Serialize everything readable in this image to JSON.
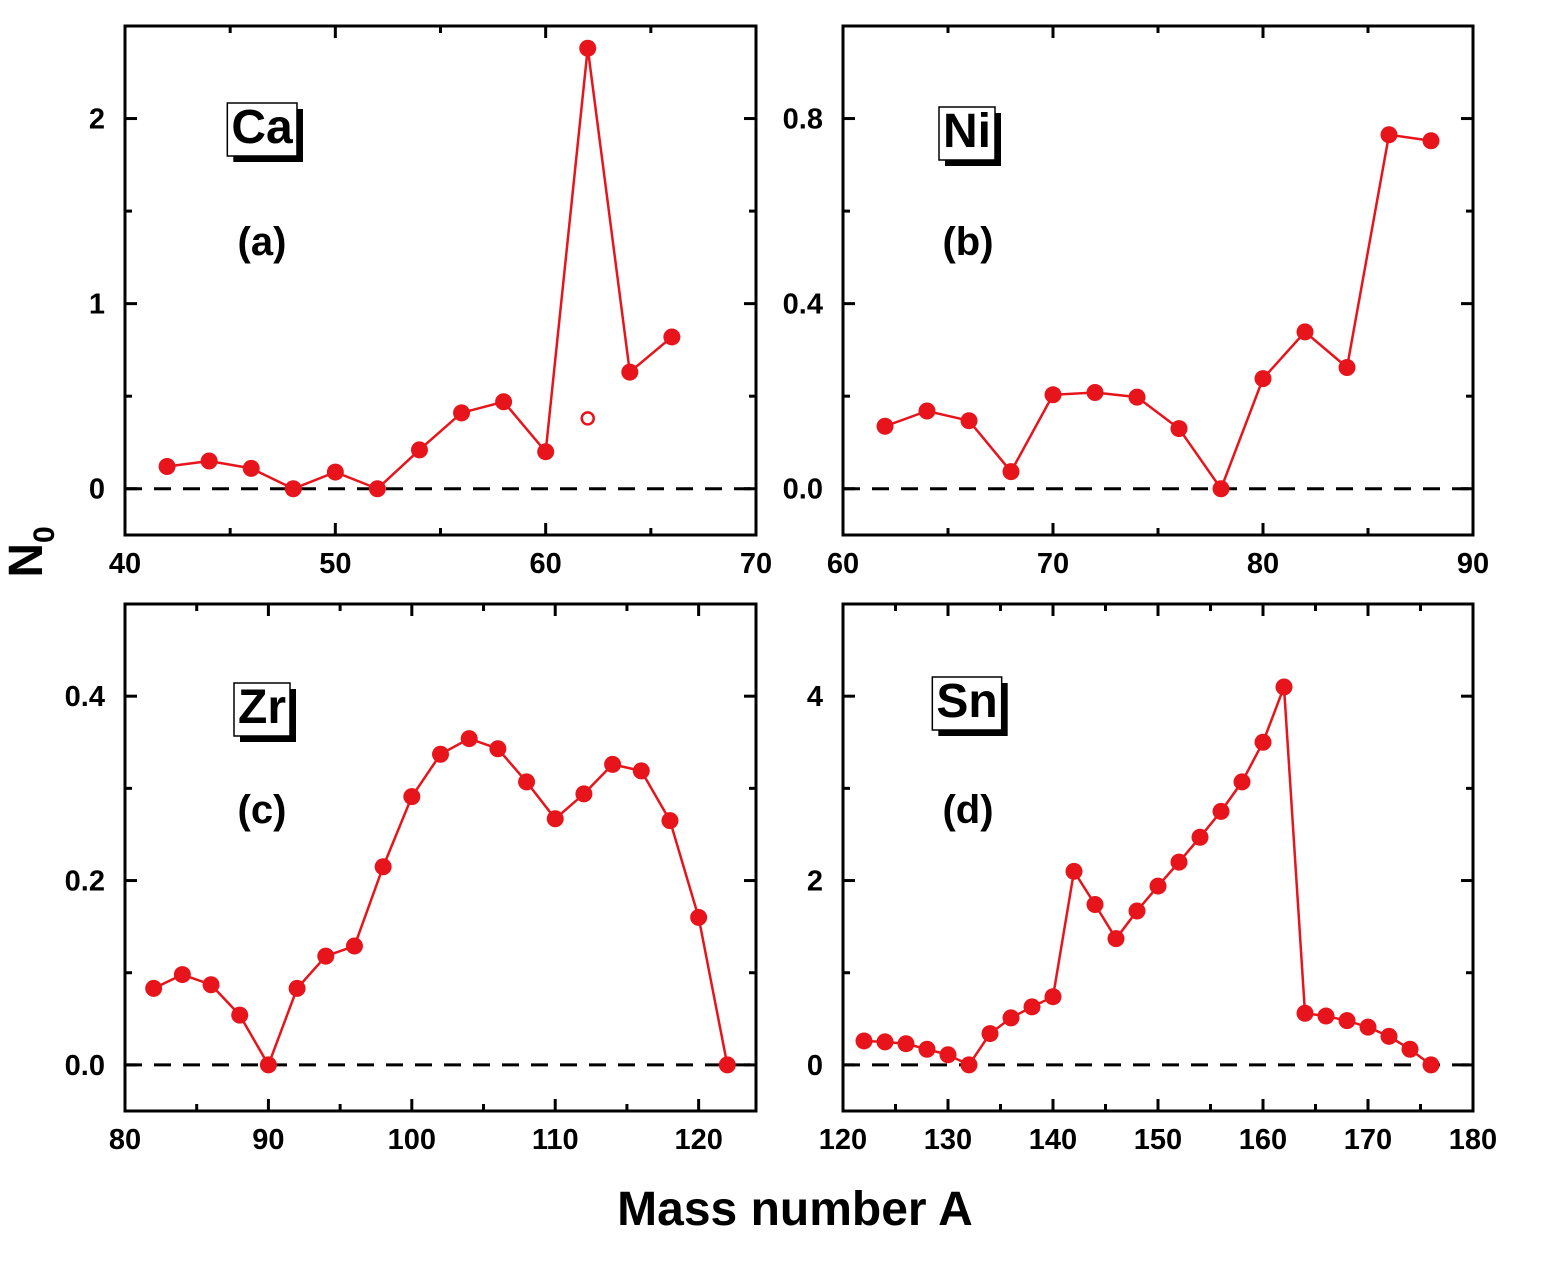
{
  "figure": {
    "xlabel": "Mass number A",
    "ylabel": "N",
    "ylabel_subscript": "0",
    "colors": {
      "series": "#e8141b",
      "axes": "#000000",
      "reference_line": "#000000"
    }
  },
  "chart_data": [
    {
      "type": "line",
      "element": "Ca",
      "panel_label": "(a)",
      "xlim": [
        40,
        70
      ],
      "ylim": [
        -0.25,
        2.5
      ],
      "xticks": [
        40,
        50,
        60,
        70
      ],
      "xtick_labels": [
        "40",
        "50",
        "60",
        "70"
      ],
      "yticks": [
        0,
        1,
        2
      ],
      "ytick_labels": [
        "0",
        "1",
        "2"
      ],
      "grid": false,
      "reference_line_y": 0,
      "series": [
        {
          "x": [
            42,
            44,
            46,
            48,
            50,
            52,
            54,
            56,
            58,
            60,
            62,
            64,
            66
          ],
          "y": [
            0.12,
            0.15,
            0.11,
            0.0,
            0.09,
            0.0,
            0.21,
            0.41,
            0.47,
            0.2,
            2.38,
            0.63,
            0.82
          ],
          "marker": "filled-circle"
        }
      ],
      "extra_points": [
        {
          "x": 62,
          "y": 0.38,
          "marker": "open-circle"
        }
      ]
    },
    {
      "type": "line",
      "element": "Ni",
      "panel_label": "(b)",
      "xlim": [
        60,
        90
      ],
      "ylim": [
        -0.1,
        1.0
      ],
      "xticks": [
        60,
        70,
        80,
        90
      ],
      "xtick_labels": [
        "60",
        "70",
        "80",
        "90"
      ],
      "yticks": [
        0.0,
        0.4,
        0.8
      ],
      "ytick_labels": [
        "0.0",
        "0.4",
        "0.8"
      ],
      "grid": false,
      "reference_line_y": 0,
      "series": [
        {
          "x": [
            62,
            64,
            66,
            68,
            70,
            72,
            74,
            76,
            78,
            80,
            82,
            84,
            86,
            88
          ],
          "y": [
            0.135,
            0.168,
            0.147,
            0.037,
            0.203,
            0.208,
            0.198,
            0.13,
            0.0,
            0.238,
            0.339,
            0.262,
            0.765,
            0.752
          ],
          "marker": "filled-circle"
        }
      ]
    },
    {
      "type": "line",
      "element": "Zr",
      "panel_label": "(c)",
      "xlim": [
        80,
        124
      ],
      "ylim": [
        -0.05,
        0.5
      ],
      "xticks": [
        80,
        90,
        100,
        110,
        120
      ],
      "xtick_labels": [
        "80",
        "90",
        "100",
        "110",
        "120"
      ],
      "yticks": [
        0.0,
        0.2,
        0.4
      ],
      "ytick_labels": [
        "0.0",
        "0.2",
        "0.4"
      ],
      "grid": false,
      "reference_line_y": 0,
      "series": [
        {
          "x": [
            82,
            84,
            86,
            88,
            90,
            92,
            94,
            96,
            98,
            100,
            102,
            104,
            106,
            108,
            110,
            112,
            114,
            116,
            118,
            120,
            122
          ],
          "y": [
            0.083,
            0.098,
            0.087,
            0.054,
            0.0,
            0.083,
            0.118,
            0.129,
            0.215,
            0.291,
            0.337,
            0.354,
            0.343,
            0.307,
            0.267,
            0.294,
            0.326,
            0.319,
            0.265,
            0.16,
            0.0
          ],
          "marker": "filled-circle"
        }
      ]
    },
    {
      "type": "line",
      "element": "Sn",
      "panel_label": "(d)",
      "xlim": [
        120,
        180
      ],
      "ylim": [
        -0.5,
        5.0
      ],
      "xticks": [
        120,
        130,
        140,
        150,
        160,
        170,
        180
      ],
      "xtick_labels": [
        "120",
        "130",
        "140",
        "150",
        "160",
        "170",
        "180"
      ],
      "yticks": [
        0,
        2,
        4
      ],
      "ytick_labels": [
        "0",
        "2",
        "4"
      ],
      "grid": false,
      "reference_line_y": 0,
      "series": [
        {
          "x": [
            122,
            124,
            126,
            128,
            130,
            132,
            134,
            136,
            138,
            140,
            142,
            144,
            146,
            148,
            150,
            152,
            154,
            156,
            158,
            160,
            162,
            164,
            166,
            168,
            170,
            172,
            174,
            176
          ],
          "y": [
            0.26,
            0.25,
            0.23,
            0.17,
            0.11,
            0.0,
            0.34,
            0.51,
            0.63,
            0.74,
            2.1,
            1.74,
            1.37,
            1.67,
            1.94,
            2.2,
            2.47,
            2.75,
            3.07,
            3.5,
            4.1,
            0.56,
            0.53,
            0.48,
            0.41,
            0.31,
            0.17,
            0.0
          ],
          "marker": "filled-circle"
        }
      ]
    }
  ]
}
